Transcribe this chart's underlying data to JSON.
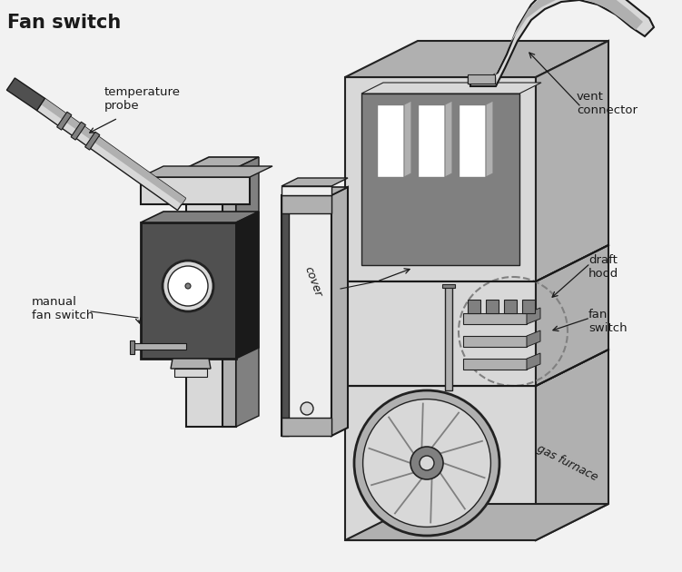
{
  "title": "Fan switch",
  "title_fontsize": 15,
  "title_fontweight": "bold",
  "bg": "#f2f2f2",
  "c_white": "#ffffff",
  "c_vlight": "#eeeeee",
  "c_light": "#d8d8d8",
  "c_mid": "#b0b0b0",
  "c_dark": "#808080",
  "c_darker": "#505050",
  "c_black": "#1a1a1a",
  "c_edge": "#222222",
  "labels": {
    "temperature_probe": "temperature\nprobe",
    "manual_fan_switch": "manual\nfan switch",
    "cover": "cover",
    "vent_connector": "vent\nconnector",
    "draft_hood": "draft\nhood",
    "fan_switch": "fan\nswitch",
    "gas_furnace": "gas furnace"
  }
}
